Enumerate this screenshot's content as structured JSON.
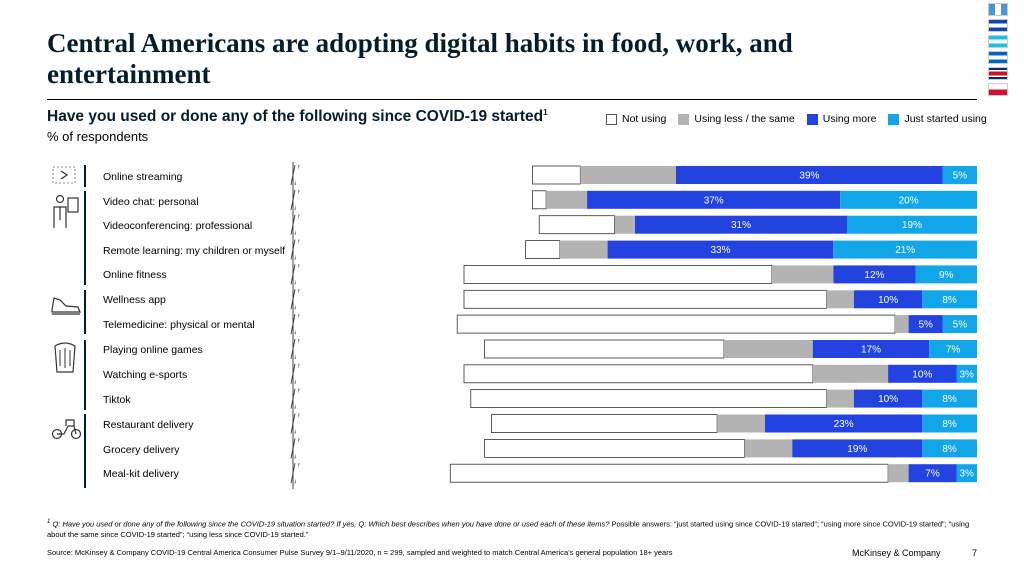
{
  "title": "Central Americans are adopting digital habits in food, work, and entertainment",
  "subtitle": "Have you used or done any of the following since COVID-19 started",
  "subtitle_sup": "1",
  "unit": "% of respondents",
  "legend": [
    {
      "label": "Not using",
      "color": "#ffffff"
    },
    {
      "label": "Using less / the same",
      "color": "#b3b3b3"
    },
    {
      "label": "Using more",
      "color": "#2243e0"
    },
    {
      "label": "Just started using",
      "color": "#12a6e8"
    }
  ],
  "chart_data": {
    "type": "bar",
    "stacked": true,
    "orientation": "horizontal",
    "categories": [
      "Online streaming",
      "Video chat: personal",
      "Videoconferencing: professional",
      "Remote learning: my children or myself",
      "Online fitness",
      "Wellness app",
      "Telemedicine: physical or mental",
      "Playing online games",
      "Watching e-sports",
      "Tiktok",
      "Restaurant delivery",
      "Grocery delivery",
      "Meal-kit delivery"
    ],
    "series": [
      {
        "name": "Not using",
        "values": [
          7,
          2,
          11,
          5,
          45,
          53,
          64,
          35,
          51,
          52,
          33,
          38,
          64
        ]
      },
      {
        "name": "Using less / the same",
        "values": [
          14,
          6,
          3,
          7,
          9,
          4,
          2,
          13,
          11,
          4,
          7,
          7,
          3
        ]
      },
      {
        "name": "Using more",
        "values": [
          39,
          37,
          31,
          33,
          12,
          10,
          5,
          17,
          10,
          10,
          23,
          19,
          7
        ]
      },
      {
        "name": "Just started using",
        "values": [
          5,
          20,
          19,
          21,
          9,
          8,
          5,
          7,
          3,
          8,
          8,
          8,
          3
        ]
      }
    ],
    "labels": {
      "Using more": [
        "39%",
        "37%",
        "31%",
        "33%",
        "12%",
        "10%",
        "5%",
        "17%",
        "10%",
        "10%",
        "23%",
        "19%",
        "7%"
      ],
      "Just started using": [
        "5%",
        "20%",
        "19%",
        "21%",
        "9%",
        "8%",
        "5%",
        "7%",
        "3%",
        "8%",
        "8%",
        "8%",
        "3%"
      ]
    },
    "axis_break": true
  },
  "icons": [
    "tv-play-icon",
    "person-presenting-icon",
    "running-shoe-icon",
    "game-controller-icon",
    "delivery-scooter-icon"
  ],
  "flags": [
    "guatemala-flag-icon",
    "el-salvador-flag-icon",
    "honduras-flag-icon",
    "nicaragua-flag-icon",
    "costa-rica-flag-icon",
    "panama-flag-icon"
  ],
  "footnote_q": "Q: Have you used or done any of the following since the COVID-19 situation started? If yes, Q: Which best describes when you have done or used each of these items?",
  "footnote_ans": " Possible answers: “just started using since COVID-19 started”; “using more since COVID-19 started”; “using about the same since COVID-19 started”; “using less since COVID-19 started.”",
  "footnote_mark": "1",
  "source": "Source: McKinsey & Company COVID-19 Central America Consumer Pulse Survey 9/1–9/11/2020, n = 299, sampled and weighted to match Central America’s general population 18+ years",
  "brand": "McKinsey & Company",
  "page_number": "7"
}
